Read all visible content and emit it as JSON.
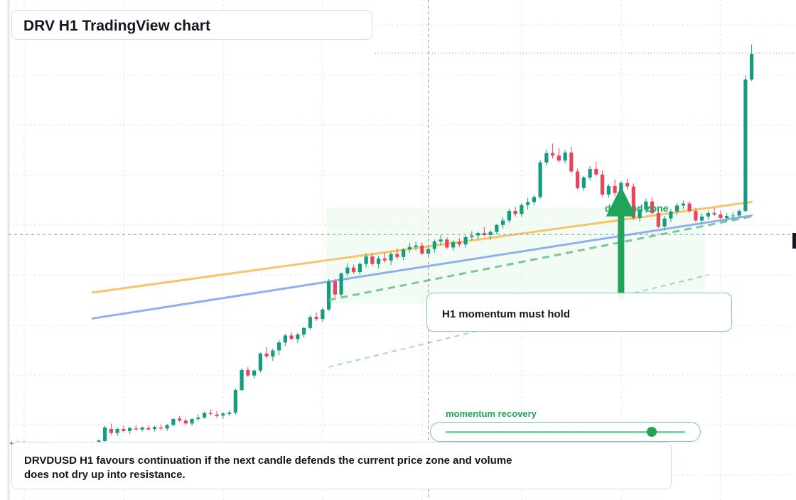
{
  "title": "DRV H1 TradingView chart",
  "zone_label": "demand zone",
  "note": "H1 momentum must hold",
  "meter": {
    "label": "momentum recovery",
    "value": 0.86
  },
  "summary": "DRVDUSD H1 favours continuation if the next candle defends the current price zone and volume does not dry up into resistance.",
  "colors": {
    "up": "#149c80",
    "down": "#e8445a",
    "accent": "#22a35a",
    "ma_slow": "#f7c46c",
    "ma_fast": "#8fb0ef"
  },
  "chart_data": {
    "type": "candlestick",
    "symbol": "DRVDUSD",
    "timeframe": "H1",
    "grid": true,
    "price_range": [
      0,
      100
    ],
    "candle_count": 120,
    "candles": [
      [
        11.4,
        11.75,
        11.1,
        11.4
      ],
      [
        11.5,
        11.85,
        11.2,
        11.4
      ],
      [
        11.3,
        11.8,
        10.95,
        11.45
      ],
      [
        11.2,
        11.6,
        10.6,
        10.9
      ],
      [
        11.4,
        11.7,
        11.1,
        11.3
      ],
      [
        11.35,
        11.65,
        11.0,
        11.2
      ],
      [
        11.2,
        11.6,
        10.8,
        11.05
      ],
      [
        10.8,
        11.2,
        10.5,
        10.8
      ],
      [
        11.0,
        11.35,
        10.65,
        10.8
      ],
      [
        10.9,
        11.2,
        10.5,
        10.6
      ],
      [
        10.8,
        11.1,
        10.4,
        10.45
      ],
      [
        10.6,
        10.9,
        10.2,
        10.5
      ],
      [
        10.4,
        10.8,
        10.0,
        10.5
      ],
      [
        10.5,
        11.05,
        10.2,
        10.9
      ],
      [
        10.8,
        12.1,
        10.4,
        11.9
      ],
      [
        11.8,
        14.9,
        11.6,
        14.5
      ],
      [
        14.2,
        15.3,
        13.0,
        13.4
      ],
      [
        13.4,
        14.5,
        12.8,
        14.2
      ],
      [
        14.2,
        14.9,
        13.5,
        13.8
      ],
      [
        13.8,
        14.6,
        13.2,
        14.4
      ],
      [
        14.3,
        14.9,
        13.9,
        14.1
      ],
      [
        14.1,
        14.7,
        13.7,
        14.5
      ],
      [
        14.4,
        15.0,
        14.0,
        14.1
      ],
      [
        14.2,
        14.8,
        13.7,
        14.6
      ],
      [
        14.5,
        15.1,
        14.0,
        14.3
      ],
      [
        14.3,
        15.2,
        13.8,
        15.0
      ],
      [
        15.0,
        16.3,
        14.7,
        16.2
      ],
      [
        16.3,
        16.8,
        15.6,
        15.9
      ],
      [
        15.9,
        16.4,
        15.0,
        15.3
      ],
      [
        15.3,
        16.3,
        14.8,
        16.2
      ],
      [
        16.2,
        17.1,
        15.8,
        16.5
      ],
      [
        16.5,
        17.7,
        16.2,
        17.4
      ],
      [
        17.4,
        18.1,
        16.9,
        17.2
      ],
      [
        17.1,
        17.8,
        16.4,
        16.8
      ],
      [
        16.9,
        17.6,
        16.2,
        17.3
      ],
      [
        17.2,
        17.9,
        16.8,
        17.5
      ],
      [
        17.5,
        22.2,
        17.1,
        22.0
      ],
      [
        22.0,
        26.4,
        21.8,
        26.0
      ],
      [
        26.0,
        26.6,
        24.6,
        24.9
      ],
      [
        24.9,
        26.1,
        24.3,
        25.9
      ],
      [
        25.9,
        29.5,
        25.5,
        29.3
      ],
      [
        29.3,
        30.6,
        28.3,
        28.7
      ],
      [
        28.7,
        30.3,
        27.8,
        29.9
      ],
      [
        29.9,
        32.0,
        29.0,
        31.5
      ],
      [
        31.5,
        33.2,
        30.8,
        32.9
      ],
      [
        32.9,
        33.6,
        32.0,
        32.2
      ],
      [
        32.2,
        33.4,
        31.4,
        33.1
      ],
      [
        33.1,
        34.6,
        32.5,
        34.4
      ],
      [
        34.4,
        37.0,
        34.0,
        36.6
      ],
      [
        36.6,
        37.5,
        35.8,
        36.2
      ],
      [
        36.2,
        38.4,
        35.6,
        38.1
      ],
      [
        38.1,
        44.2,
        37.8,
        43.7
      ],
      [
        43.7,
        44.2,
        40.5,
        41.1
      ],
      [
        41.1,
        45.5,
        40.8,
        45.3
      ],
      [
        45.3,
        47.4,
        44.7,
        46.5
      ],
      [
        46.5,
        47.1,
        45.2,
        45.6
      ],
      [
        45.6,
        47.6,
        45.1,
        47.2
      ],
      [
        47.2,
        49.3,
        46.5,
        48.7
      ],
      [
        48.7,
        49.4,
        46.8,
        47.2
      ],
      [
        47.2,
        48.9,
        46.3,
        48.3
      ],
      [
        48.3,
        49.5,
        47.4,
        47.9
      ],
      [
        47.9,
        49.5,
        47.0,
        49.2
      ],
      [
        49.2,
        50.3,
        48.1,
        48.6
      ],
      [
        48.6,
        50.4,
        48.0,
        50.1
      ],
      [
        50.1,
        51.4,
        49.5,
        50.6
      ],
      [
        50.6,
        51.7,
        49.9,
        50.9
      ],
      [
        50.9,
        51.5,
        49.0,
        49.3
      ],
      [
        49.3,
        50.6,
        48.7,
        50.2
      ],
      [
        50.2,
        52.1,
        49.5,
        51.7
      ],
      [
        51.7,
        53.0,
        50.9,
        52.1
      ],
      [
        52.1,
        52.6,
        50.2,
        50.5
      ],
      [
        50.5,
        52.0,
        49.8,
        51.6
      ],
      [
        51.6,
        52.4,
        50.6,
        51.1
      ],
      [
        51.1,
        52.9,
        50.4,
        52.6
      ],
      [
        52.6,
        53.8,
        51.9,
        52.9
      ],
      [
        52.9,
        53.7,
        52.1,
        53.4
      ],
      [
        53.4,
        54.6,
        52.7,
        53.0
      ],
      [
        53.0,
        54.0,
        52.0,
        53.6
      ],
      [
        53.6,
        55.2,
        53.1,
        55.0
      ],
      [
        55.0,
        56.5,
        54.3,
        55.9
      ],
      [
        55.9,
        58.2,
        55.4,
        57.8
      ],
      [
        57.8,
        58.6,
        56.7,
        57.2
      ],
      [
        57.2,
        59.4,
        56.6,
        59.0
      ],
      [
        59.0,
        60.4,
        58.1,
        59.6
      ],
      [
        59.6,
        61.0,
        58.9,
        60.6
      ],
      [
        60.6,
        68.0,
        60.2,
        67.5
      ],
      [
        67.5,
        70.1,
        66.8,
        69.4
      ],
      [
        69.4,
        71.3,
        68.3,
        68.9
      ],
      [
        68.9,
        70.3,
        67.5,
        67.9
      ],
      [
        67.9,
        70.0,
        67.3,
        69.5
      ],
      [
        69.5,
        70.6,
        65.4,
        65.7
      ],
      [
        65.7,
        66.3,
        62.1,
        62.4
      ],
      [
        62.4,
        64.8,
        61.8,
        64.5
      ],
      [
        64.5,
        66.8,
        63.9,
        66.2
      ],
      [
        66.2,
        67.6,
        64.7,
        65.1
      ],
      [
        65.1,
        65.9,
        60.7,
        61.1
      ],
      [
        61.1,
        63.2,
        60.5,
        62.8
      ],
      [
        62.8,
        64.1,
        60.8,
        61.4
      ],
      [
        61.4,
        63.8,
        60.9,
        63.4
      ],
      [
        63.4,
        64.2,
        62.0,
        62.7
      ],
      [
        62.7,
        63.3,
        56.0,
        56.4
      ],
      [
        56.4,
        58.7,
        55.7,
        58.1
      ],
      [
        58.1,
        60.3,
        57.4,
        59.7
      ],
      [
        59.7,
        60.6,
        57.1,
        57.4
      ],
      [
        57.4,
        58.7,
        54.4,
        54.7
      ],
      [
        54.7,
        56.8,
        53.9,
        56.3
      ],
      [
        56.3,
        58.2,
        55.6,
        57.7
      ],
      [
        57.7,
        59.4,
        57.0,
        58.9
      ],
      [
        58.9,
        59.9,
        58.2,
        59.3
      ],
      [
        59.3,
        59.8,
        57.4,
        57.8
      ],
      [
        57.8,
        58.4,
        55.6,
        55.9
      ],
      [
        55.9,
        57.3,
        55.2,
        56.7
      ],
      [
        56.7,
        57.9,
        56.0,
        57.4
      ],
      [
        57.4,
        58.4,
        56.8,
        57.1
      ],
      [
        57.1,
        57.9,
        56.1,
        56.4
      ],
      [
        56.4,
        57.4,
        55.6,
        56.8
      ],
      [
        56.8,
        57.6,
        56.0,
        56.9
      ],
      [
        56.9,
        58.1,
        56.4,
        57.8
      ],
      [
        57.8,
        84.9,
        57.5,
        84.1
      ],
      [
        84.1,
        91.1,
        83.8,
        89.2
      ]
    ],
    "moving_averages": [
      {
        "color": "#f7c46c",
        "start": {
          "index": 13,
          "value": 41.5
        },
        "end": {
          "index": 119,
          "value": 59.6
        }
      },
      {
        "color": "#8fb0ef",
        "start": {
          "index": 13,
          "value": 36.3
        },
        "end": {
          "index": 119,
          "value": 56.9
        }
      }
    ],
    "trend_lines": [
      {
        "start": {
          "index": 51,
          "value": 40.0
        },
        "end": {
          "index": 119,
          "value": 56.7
        }
      },
      {
        "start": {
          "index": 51,
          "value": 26.6
        },
        "end": {
          "index": 112,
          "value": 45.0
        }
      }
    ],
    "demand_zone": {
      "from_index": 51,
      "to_index": 112,
      "low": 39.3,
      "high": 58.5
    },
    "arrow": {
      "index": 98,
      "from": 40.5,
      "to": 62.7,
      "direction": "up"
    },
    "crosshair": {
      "index": 67,
      "value": 53.1
    },
    "last_price_line": 89.2
  }
}
